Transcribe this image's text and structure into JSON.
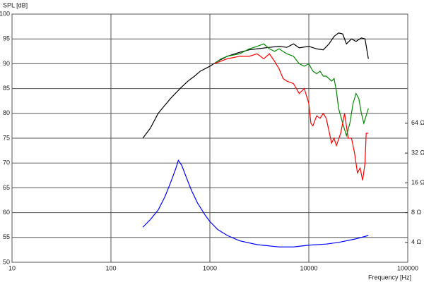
{
  "chart_data": {
    "type": "line",
    "ylabel": "SPL [dB]",
    "xlabel": "Frequency [Hz]",
    "xscale": "log",
    "y2scale": "log",
    "grid": true,
    "xlim": [
      10,
      100000
    ],
    "xticks": [
      10,
      100,
      1000,
      10000,
      100000
    ],
    "ylim": [
      50,
      100
    ],
    "yticks": [
      50,
      55,
      60,
      65,
      70,
      75,
      80,
      85,
      90,
      95,
      100
    ],
    "y2lim": [
      2.52,
      812
    ],
    "y2ticks": [
      {
        "value": 4,
        "label": "4 Ω"
      },
      {
        "value": 8,
        "label": "8 Ω"
      },
      {
        "value": 16,
        "label": "16 Ω"
      },
      {
        "value": 32,
        "label": "32 Ω"
      },
      {
        "value": 64,
        "label": "64 Ω"
      }
    ],
    "series": [
      {
        "color": "#000000",
        "x": [
          210,
          250,
          300,
          400,
          500,
          600,
          700,
          800,
          1000,
          1200,
          1500,
          2000,
          2500,
          3000,
          4000,
          5000,
          6000,
          7000,
          8000,
          10000,
          12000,
          14000,
          16000,
          18000,
          20000,
          22000,
          24000,
          27000,
          30000,
          34000,
          37000,
          40000
        ],
        "values": [
          75,
          77,
          80,
          83,
          85,
          86.5,
          87.5,
          88.5,
          89.5,
          90.5,
          91.5,
          92.3,
          92.8,
          93,
          93.3,
          93.5,
          93.3,
          94,
          93.2,
          93.5,
          93,
          92.8,
          94,
          95.5,
          96.2,
          96,
          94,
          95,
          94.5,
          95.2,
          95,
          91
        ]
      },
      {
        "color": "#008800",
        "x": [
          1100,
          1300,
          1500,
          2000,
          2500,
          3000,
          3500,
          4000,
          4500,
          5000,
          6000,
          7000,
          8000,
          9000,
          10000,
          11000,
          12000,
          13000,
          14000,
          15000,
          17000,
          18000,
          19000,
          20000,
          22000,
          24000,
          26000,
          28000,
          30000,
          32000,
          34000,
          36000,
          40000
        ],
        "values": [
          90,
          91,
          91.5,
          92,
          93,
          93.5,
          94,
          93,
          92.5,
          93,
          92,
          91.5,
          90,
          89.5,
          90,
          88.5,
          88,
          88.5,
          87.5,
          87.5,
          86.5,
          87,
          84.5,
          81,
          78,
          75.5,
          78,
          82,
          84,
          83,
          80,
          78,
          81
        ]
      },
      {
        "color": "#ff0000",
        "x": [
          1100,
          1500,
          2000,
          2500,
          3000,
          3500,
          4000,
          4500,
          5000,
          5500,
          6000,
          7000,
          8000,
          9000,
          10000,
          10500,
          11000,
          12000,
          13000,
          14000,
          15000,
          17000,
          18000,
          19000,
          21000,
          23000,
          25000,
          27000,
          29000,
          31000,
          33000,
          35000,
          37000,
          38000,
          40000
        ],
        "values": [
          90,
          91,
          91.5,
          91.5,
          92,
          91,
          92,
          90.5,
          89,
          87,
          86.5,
          86,
          84,
          85,
          82,
          78,
          77.5,
          79.5,
          79,
          80,
          79,
          74,
          75,
          73.5,
          76,
          80,
          75,
          75,
          72,
          68,
          69,
          66.5,
          70,
          76,
          76
        ]
      },
      {
        "color": "#0000ff",
        "axis": "y2",
        "x": [
          210,
          250,
          300,
          350,
          400,
          450,
          480,
          520,
          580,
          650,
          750,
          900,
          1000,
          1200,
          1500,
          2000,
          3000,
          5000,
          7000,
          10000,
          15000,
          20000,
          30000,
          40000
        ],
        "values": [
          5.7,
          6.8,
          8.5,
          11.5,
          16,
          22,
          27,
          24,
          18,
          13.5,
          10,
          7.5,
          6.5,
          5.4,
          4.7,
          4.15,
          3.8,
          3.6,
          3.6,
          3.75,
          3.85,
          4.0,
          4.35,
          4.7
        ]
      }
    ]
  }
}
